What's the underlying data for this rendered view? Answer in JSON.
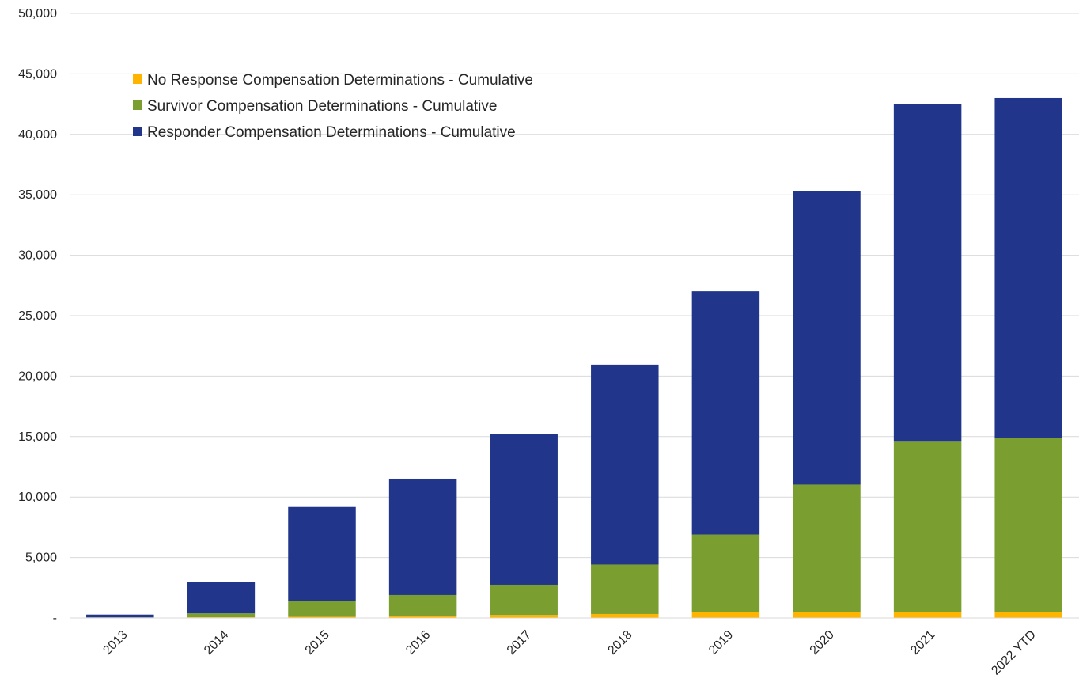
{
  "chart_data": {
    "type": "bar",
    "stacked": true,
    "title": "",
    "xlabel": "",
    "ylabel": "",
    "categories": [
      "2013",
      "2014",
      "2015",
      "2016",
      "2017",
      "2018",
      "2019",
      "2020",
      "2021",
      "2022 YTD"
    ],
    "ylim": [
      0,
      50000
    ],
    "yticks": [
      0,
      5000,
      10000,
      15000,
      20000,
      25000,
      30000,
      35000,
      40000,
      45000,
      50000
    ],
    "ytick_labels": [
      "-",
      "5,000",
      "10,000",
      "15,000",
      "20,000",
      "25,000",
      "30,000",
      "35,000",
      "40,000",
      "45,000",
      "50,000"
    ],
    "grid": true,
    "legend_position": "top-left",
    "series": [
      {
        "name": "No Response Compensation Determinations - Cumulative",
        "color": "#FFB400",
        "values": [
          10,
          60,
          100,
          180,
          250,
          330,
          460,
          480,
          500,
          520
        ]
      },
      {
        "name": "Survivor Compensation Determinations - Cumulative",
        "color": "#7A9F30",
        "values": [
          40,
          320,
          1290,
          1720,
          2500,
          4090,
          6440,
          10550,
          14140,
          14360
        ]
      },
      {
        "name": "Responder Compensation Determinations - Cumulative",
        "color": "#21368A",
        "values": [
          230,
          2620,
          7790,
          9620,
          12450,
          16530,
          20120,
          24270,
          27860,
          28120
        ]
      }
    ]
  }
}
